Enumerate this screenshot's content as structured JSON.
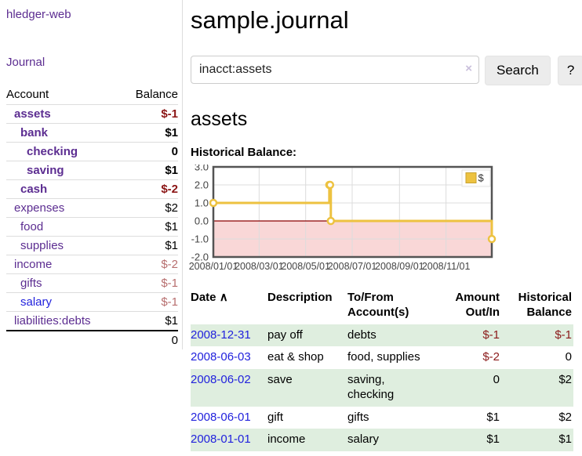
{
  "brand": "hledger-web",
  "nav": {
    "journal": "Journal"
  },
  "sidebar_table": {
    "headers": {
      "account": "Account",
      "balance": "Balance"
    },
    "rows": [
      {
        "name": "assets",
        "level": 1,
        "name_style": "purple bold",
        "balance": "$-1",
        "balance_style": "neg-strong"
      },
      {
        "name": "bank",
        "level": 2,
        "name_style": "purple bold",
        "balance": "$1",
        "balance_style": "bold"
      },
      {
        "name": "checking",
        "level": 3,
        "name_style": "purple bold",
        "balance": "0",
        "balance_style": "bold"
      },
      {
        "name": "saving",
        "level": 3,
        "name_style": "purple bold",
        "balance": "$1",
        "balance_style": "bold"
      },
      {
        "name": "cash",
        "level": 2,
        "name_style": "purple bold",
        "balance": "$-2",
        "balance_style": "neg-strong"
      },
      {
        "name": "expenses",
        "level": 1,
        "name_style": "purple",
        "balance": "$2",
        "balance_style": ""
      },
      {
        "name": "food",
        "level": 2,
        "name_style": "purple",
        "balance": "$1",
        "balance_style": ""
      },
      {
        "name": "supplies",
        "level": 2,
        "name_style": "purple",
        "balance": "$1",
        "balance_style": ""
      },
      {
        "name": "income",
        "level": 1,
        "name_style": "purple",
        "balance": "$-2",
        "balance_style": "neg-soft"
      },
      {
        "name": "gifts",
        "level": 2,
        "name_style": "purple",
        "balance": "$-1",
        "balance_style": "neg-soft"
      },
      {
        "name": "salary",
        "level": 2,
        "name_style": "blue-link",
        "balance": "$-1",
        "balance_style": "neg-soft"
      },
      {
        "name": "liabilities:debts",
        "level": 1,
        "name_style": "purple",
        "balance": "$1",
        "balance_style": ""
      }
    ],
    "total": "0"
  },
  "header": {
    "title": "sample.journal"
  },
  "search": {
    "query": "inacct:assets",
    "clear_icon": "×",
    "button": "Search",
    "help_button": "?"
  },
  "account_page": {
    "heading": "assets",
    "chart_label": "Historical Balance:"
  },
  "chart_data": {
    "type": "line",
    "step": true,
    "title": "Historical Balance",
    "series": [
      {
        "name": "$",
        "color": "#edc240",
        "points": [
          {
            "date": "2008-01-01",
            "day": 0,
            "value": 1
          },
          {
            "date": "2008-06-01",
            "day": 152,
            "value": 2
          },
          {
            "date": "2008-06-02",
            "day": 153,
            "value": 2
          },
          {
            "date": "2008-06-03",
            "day": 154,
            "value": 0
          },
          {
            "date": "2008-12-31",
            "day": 365,
            "value": -1
          }
        ]
      }
    ],
    "x_tick_labels": [
      "2008/01/01",
      "2008/03/01",
      "2008/05/01",
      "2008/07/01",
      "2008/09/01",
      "2008/11/01"
    ],
    "x_tick_days": [
      0,
      60,
      121,
      182,
      244,
      305
    ],
    "x_range_days": [
      0,
      365
    ],
    "y_tick_labels": [
      "3.0",
      "2.0",
      "1.0",
      "0.0",
      "-1.0",
      "-2.0"
    ],
    "y_ticks": [
      3,
      2,
      1,
      0,
      -1,
      -2
    ],
    "ylim": [
      -2,
      3
    ],
    "grid": true,
    "negative_region_color": "#f9d7d7",
    "zero_line_color": "#8b0000",
    "border_color": "#545454",
    "grid_color": "#dcdcdc",
    "legend": {
      "label": "$",
      "position": "top-right"
    }
  },
  "register": {
    "sort_icon": "∧",
    "columns": [
      {
        "label": "Date"
      },
      {
        "label": "Description"
      },
      {
        "label": "To/From Account(s)"
      },
      {
        "label": "Amount Out/In"
      },
      {
        "label": "Historical Balance"
      }
    ],
    "rows": [
      {
        "date": "2008-12-31",
        "description": "pay off",
        "accounts": [
          "debts"
        ],
        "amount": "$-1",
        "amount_neg": true,
        "balance": "$-1",
        "balance_neg": true,
        "shaded": true
      },
      {
        "date": "2008-06-03",
        "description": "eat & shop",
        "accounts": [
          "food, supplies"
        ],
        "amount": "$-2",
        "amount_neg": true,
        "balance": "0",
        "balance_neg": false,
        "shaded": false
      },
      {
        "date": "2008-06-02",
        "description": "save",
        "accounts": [
          "saving,",
          "checking"
        ],
        "amount": "0",
        "amount_neg": false,
        "balance": "$2",
        "balance_neg": false,
        "shaded": true
      },
      {
        "date": "2008-06-01",
        "description": "gift",
        "accounts": [
          "gifts"
        ],
        "amount": "$1",
        "amount_neg": false,
        "balance": "$2",
        "balance_neg": false,
        "shaded": false
      },
      {
        "date": "2008-01-01",
        "description": "income",
        "accounts": [
          "salary"
        ],
        "amount": "$1",
        "amount_neg": false,
        "balance": "$1",
        "balance_neg": false,
        "shaded": true
      }
    ]
  },
  "colors": {
    "accent_purple": "#5c2d91",
    "link_blue": "#2222dd",
    "negative_strong": "#8b1515",
    "negative_soft": "#b76e6e",
    "negative_table": "#8b1a1a",
    "row_shade_green": "#dfeedf",
    "series_gold": "#edc240"
  }
}
